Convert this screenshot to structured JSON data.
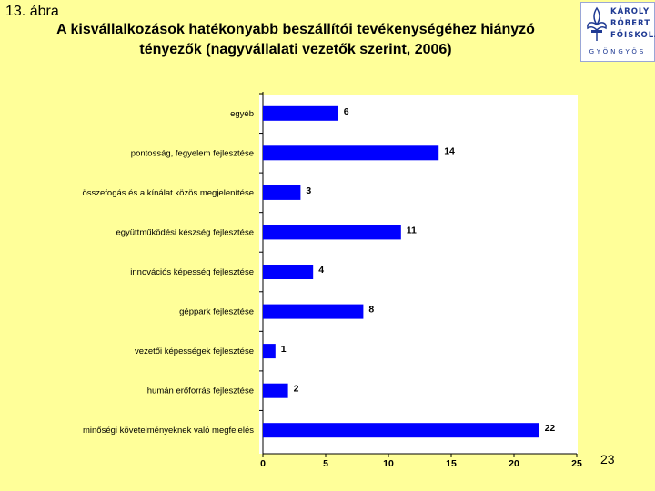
{
  "header": {
    "figure_label": "13. ábra",
    "title_line1": "A kisvállalkozások hatékonyabb beszállítói tevékenységéhez hiányzó",
    "title_line2": "tényezők (nagyvállalati vezetők szerint, 2006)"
  },
  "logo": {
    "line1": "KÁROLY",
    "line2": "RÓBERT",
    "line3": "FŐISKOLA",
    "city": "GYÖNGYÖS",
    "color": "#1f3a93"
  },
  "page_number": "23",
  "colors": {
    "background": "#FFFF99",
    "bar": "#0000FF",
    "plot_background": "#FFFFFF"
  },
  "chart_data": {
    "type": "bar",
    "orientation": "horizontal",
    "categories": [
      "egyéb",
      "pontosság, fegyelem fejlesztése",
      "összefogás és a kínálat közös megjelenítése",
      "együttműködési készség fejlesztése",
      "innovációs képesség fejlesztése",
      "géppark fejlesztése",
      "vezetői képességek fejlesztése",
      "humán erőforrás fejlesztése",
      "minőségi követelményeknek való megfelelés"
    ],
    "values": [
      6,
      14,
      3,
      11,
      4,
      8,
      1,
      2,
      22
    ],
    "xlim": [
      0,
      25
    ],
    "xticks": [
      "0",
      "5",
      "10",
      "15",
      "20",
      "25"
    ],
    "grid": false,
    "legend": "none",
    "title": "",
    "xlabel": "",
    "ylabel": ""
  }
}
